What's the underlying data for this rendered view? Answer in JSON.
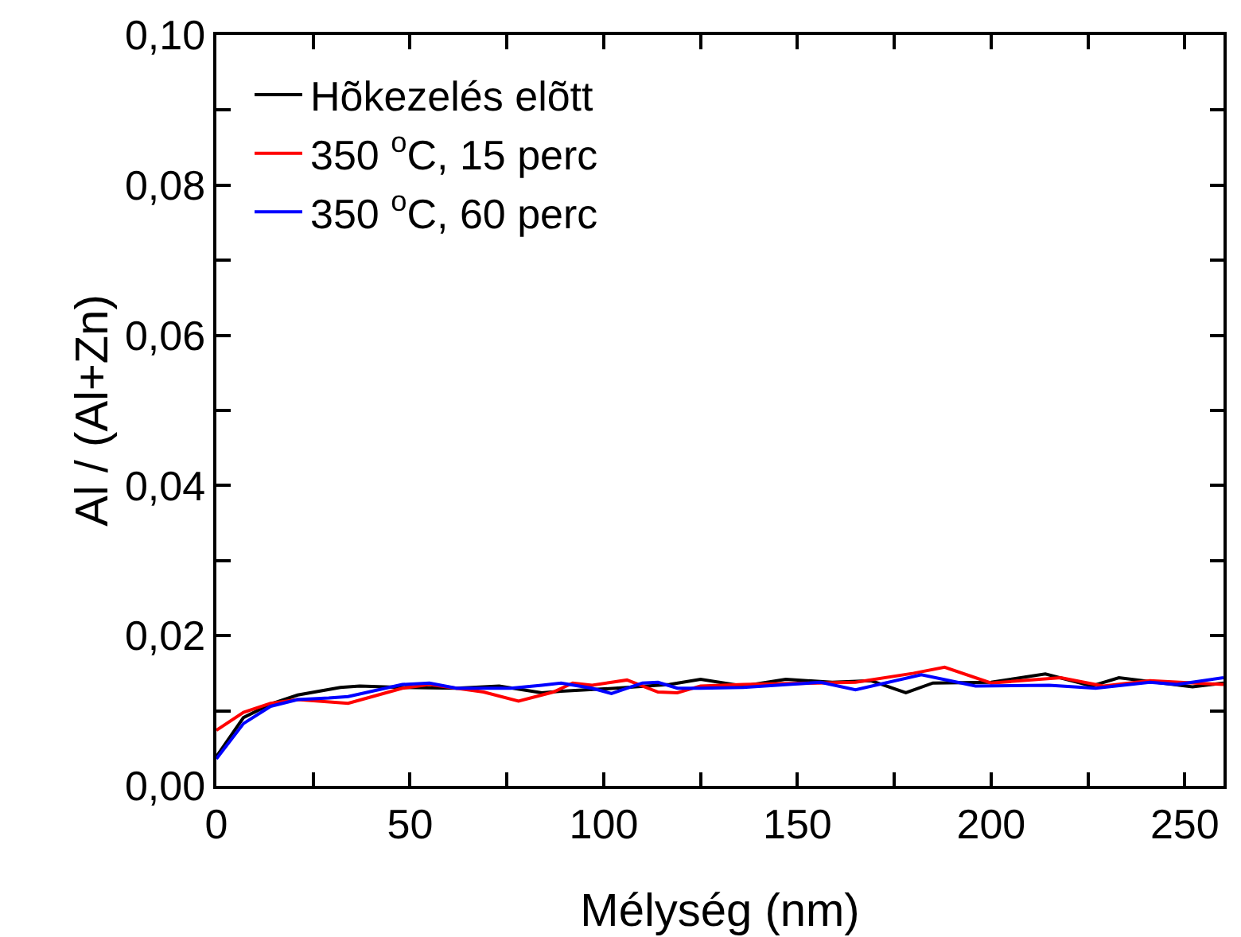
{
  "chart_data": {
    "type": "line",
    "xlabel": "Mélység (nm)",
    "ylabel": "Al / (Al+Zn)",
    "xlim": [
      0,
      260
    ],
    "xticks": [
      0,
      {
        "value": 25,
        "label": null
      },
      50,
      {
        "value": 75,
        "label": null
      },
      100,
      {
        "value": 125,
        "label": null
      },
      150,
      {
        "value": 175,
        "label": null
      },
      200,
      {
        "value": 225,
        "label": null
      },
      250
    ],
    "ylim": [
      0,
      0.1
    ],
    "yticks": [
      {
        "value": 0,
        "label": "0,00"
      },
      {
        "value": 0.01,
        "label": null
      },
      {
        "value": 0.02,
        "label": "0,02"
      },
      {
        "value": 0.03,
        "label": null
      },
      {
        "value": 0.04,
        "label": "0,04"
      },
      {
        "value": 0.05,
        "label": null
      },
      {
        "value": 0.06,
        "label": "0,06"
      },
      {
        "value": 0.07,
        "label": null
      },
      {
        "value": 0.08,
        "label": "0,08"
      },
      {
        "value": 0.09,
        "label": null
      },
      {
        "value": 0.1,
        "label": "0,10"
      }
    ],
    "grid": false,
    "legend": "top left",
    "line_style": "solid",
    "marker": "none",
    "series": [
      {
        "name": "Hõkezelés elõtt",
        "color": "#000000",
        "x": [
          0,
          7,
          14,
          21,
          32,
          37,
          48,
          62,
          73,
          84,
          89,
          103,
          117,
          125,
          136,
          147,
          159,
          169,
          178,
          185,
          200,
          214,
          226,
          233,
          252,
          260
        ],
        "values": [
          0.0039,
          0.0091,
          0.0109,
          0.0121,
          0.0131,
          0.0133,
          0.0131,
          0.013,
          0.0133,
          0.0124,
          0.0126,
          0.013,
          0.0135,
          0.0142,
          0.0133,
          0.0142,
          0.0138,
          0.014,
          0.0124,
          0.0137,
          0.0138,
          0.0149,
          0.0133,
          0.0144,
          0.0132,
          0.0137
        ]
      },
      {
        "name": "350 $^{o}$C, 15 perc",
        "color": "#ff0000",
        "x": [
          0,
          7,
          14,
          21,
          34,
          41,
          48,
          55,
          69,
          78,
          87,
          92,
          97,
          106,
          114,
          119,
          125,
          136,
          165,
          180,
          188,
          200,
          218,
          229,
          241,
          260
        ],
        "values": [
          0.0074,
          0.0098,
          0.011,
          0.0115,
          0.011,
          0.012,
          0.013,
          0.0135,
          0.0125,
          0.0113,
          0.0125,
          0.0137,
          0.0134,
          0.0141,
          0.0125,
          0.0124,
          0.0133,
          0.0135,
          0.0138,
          0.015,
          0.0158,
          0.0137,
          0.0144,
          0.0133,
          0.014,
          0.0135
        ]
      },
      {
        "name": "350 $^{o}$C, 60 perc",
        "color": "#0000ff",
        "x": [
          0,
          7,
          14,
          21,
          29,
          34,
          48,
          55,
          62,
          76,
          84,
          89,
          97,
          102,
          110,
          114,
          119,
          125,
          136,
          156,
          165,
          182,
          196,
          215,
          227,
          241,
          248,
          260
        ],
        "values": [
          0.0036,
          0.0083,
          0.0106,
          0.0115,
          0.0117,
          0.0119,
          0.0135,
          0.0137,
          0.013,
          0.013,
          0.0134,
          0.0137,
          0.013,
          0.0123,
          0.0137,
          0.0138,
          0.013,
          0.013,
          0.0131,
          0.0138,
          0.0128,
          0.0148,
          0.0133,
          0.0134,
          0.013,
          0.0138,
          0.0135,
          0.0144
        ]
      }
    ]
  }
}
